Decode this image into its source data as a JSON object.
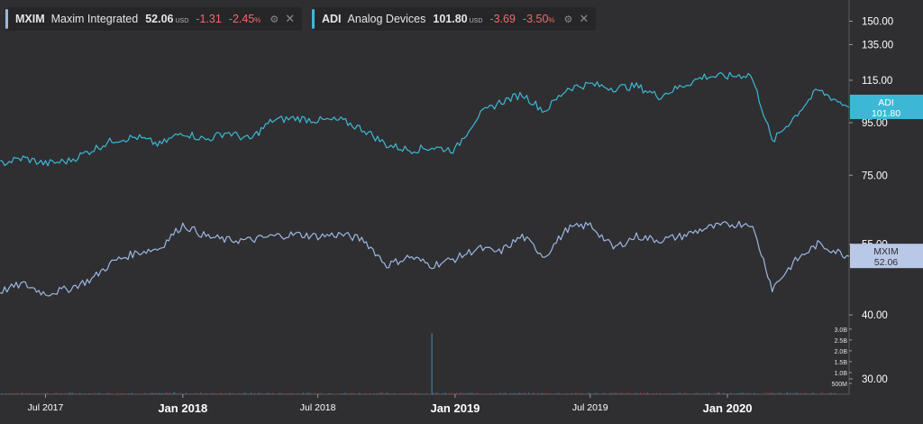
{
  "legend": [
    {
      "symbol": "MXIM",
      "name": "Maxim Integrated",
      "price": "52.06",
      "currency": "USD",
      "change": "-1.31",
      "change_pct": "-2.45",
      "pct_sign": "%",
      "color": "#9db6e3",
      "settings_icon": "settings-icon",
      "close_icon": "close-icon"
    },
    {
      "symbol": "ADI",
      "name": "Analog Devices",
      "price": "101.80",
      "currency": "USD",
      "change": "-3.69",
      "change_pct": "-3.50",
      "pct_sign": "%",
      "color": "#3cb8d6",
      "settings_icon": "settings-icon",
      "close_icon": "close-icon"
    }
  ],
  "colors": {
    "background": "#2f2f31",
    "axis_text": "#ffffff",
    "mxim": "#9db6e3",
    "adi": "#3cb8d6",
    "negative": "#f06a6a",
    "volume_up": "#3b6d8c",
    "volume_down": "#8c3b3b"
  },
  "chart_data": {
    "type": "line",
    "y_scale": "log",
    "ylim": [
      28,
      165
    ],
    "y_ticks": [
      "150.00",
      "135.00",
      "115.00",
      "95.00",
      "75.00",
      "55.00",
      "40.00",
      "30.00"
    ],
    "x_ticks": [
      {
        "date": "2017-07-01",
        "label": "Jul 2017",
        "major": false
      },
      {
        "date": "2018-01-01",
        "label": "Jan 2018",
        "major": true
      },
      {
        "date": "2018-07-01",
        "label": "Jul 2018",
        "major": false
      },
      {
        "date": "2019-01-01",
        "label": "Jan 2019",
        "major": true
      },
      {
        "date": "2019-07-01",
        "label": "Jul 2019",
        "major": false
      },
      {
        "date": "2020-01-01",
        "label": "Jan 2020",
        "major": true
      }
    ],
    "xlim": [
      "2017-05-01",
      "2020-06-12"
    ],
    "series": [
      {
        "name": "ADI",
        "last_label": "ADI",
        "last_value": "101.80",
        "points": [
          [
            "2017-05-01",
            79
          ],
          [
            "2017-06-01",
            81
          ],
          [
            "2017-07-01",
            79
          ],
          [
            "2017-08-01",
            80
          ],
          [
            "2017-09-01",
            84
          ],
          [
            "2017-10-01",
            88
          ],
          [
            "2017-11-01",
            89
          ],
          [
            "2017-12-01",
            86
          ],
          [
            "2018-01-01",
            91
          ],
          [
            "2018-02-01",
            88
          ],
          [
            "2018-03-01",
            91
          ],
          [
            "2018-04-01",
            88
          ],
          [
            "2018-05-01",
            96
          ],
          [
            "2018-06-01",
            97
          ],
          [
            "2018-07-01",
            96
          ],
          [
            "2018-08-01",
            96
          ],
          [
            "2018-09-01",
            92
          ],
          [
            "2018-10-01",
            86
          ],
          [
            "2018-11-01",
            84
          ],
          [
            "2018-12-01",
            85
          ],
          [
            "2019-01-01",
            84
          ],
          [
            "2019-02-01",
            98
          ],
          [
            "2019-03-01",
            104
          ],
          [
            "2019-04-01",
            108
          ],
          [
            "2019-05-01",
            100
          ],
          [
            "2019-06-01",
            111
          ],
          [
            "2019-07-01",
            113
          ],
          [
            "2019-08-01",
            111
          ],
          [
            "2019-09-01",
            112
          ],
          [
            "2019-10-01",
            107
          ],
          [
            "2019-11-01",
            112
          ],
          [
            "2019-12-01",
            117
          ],
          [
            "2020-01-01",
            117
          ],
          [
            "2020-02-01",
            118
          ],
          [
            "2020-03-01",
            87
          ],
          [
            "2020-04-01",
            98
          ],
          [
            "2020-05-01",
            110
          ],
          [
            "2020-06-12",
            101.8
          ]
        ]
      },
      {
        "name": "MXIM",
        "last_label": "MXIM",
        "last_value": "52.06",
        "points": [
          [
            "2017-05-01",
            44.5
          ],
          [
            "2017-06-01",
            46
          ],
          [
            "2017-07-01",
            44
          ],
          [
            "2017-08-01",
            45
          ],
          [
            "2017-09-01",
            47
          ],
          [
            "2017-10-01",
            51
          ],
          [
            "2017-11-01",
            53
          ],
          [
            "2017-12-01",
            54
          ],
          [
            "2018-01-01",
            60
          ],
          [
            "2018-02-01",
            57
          ],
          [
            "2018-03-01",
            56
          ],
          [
            "2018-04-01",
            56
          ],
          [
            "2018-05-01",
            57
          ],
          [
            "2018-06-01",
            57.5
          ],
          [
            "2018-07-01",
            57
          ],
          [
            "2018-08-01",
            57.5
          ],
          [
            "2018-09-01",
            56
          ],
          [
            "2018-10-01",
            50
          ],
          [
            "2018-11-01",
            52
          ],
          [
            "2018-12-01",
            50
          ],
          [
            "2019-01-01",
            51.5
          ],
          [
            "2019-02-01",
            54
          ],
          [
            "2019-03-01",
            53
          ],
          [
            "2019-04-01",
            57
          ],
          [
            "2019-05-01",
            52
          ],
          [
            "2019-06-01",
            59
          ],
          [
            "2019-07-01",
            60
          ],
          [
            "2019-08-01",
            54
          ],
          [
            "2019-09-01",
            57
          ],
          [
            "2019-10-01",
            56
          ],
          [
            "2019-11-01",
            57
          ],
          [
            "2019-12-01",
            59
          ],
          [
            "2020-01-01",
            60
          ],
          [
            "2020-02-01",
            60.5
          ],
          [
            "2020-03-01",
            45
          ],
          [
            "2020-04-01",
            51
          ],
          [
            "2020-05-01",
            55
          ],
          [
            "2020-06-12",
            52.06
          ]
        ]
      }
    ],
    "volume": {
      "y_ticks": [
        "3.0B",
        "2.5B",
        "2.0B",
        "1.5B",
        "1.0B",
        "500M"
      ],
      "ylim": [
        0,
        3.2
      ],
      "unit": "billions",
      "baseline": 0.04,
      "spikes": [
        [
          "2018-11-30",
          2.8
        ],
        [
          "2017-12-20",
          0.1
        ],
        [
          "2019-12-20",
          0.08
        ],
        [
          "2020-03-20",
          0.09
        ]
      ]
    }
  }
}
